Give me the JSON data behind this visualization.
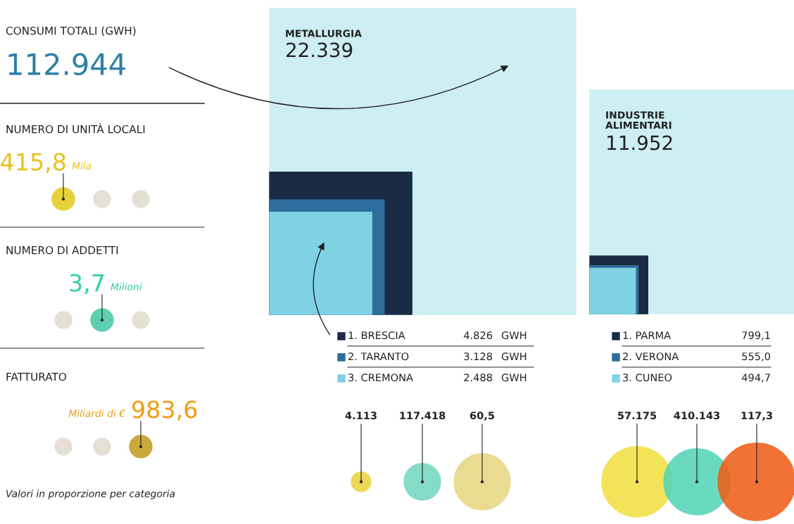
{
  "chart_data": [
    {
      "type": "other",
      "title": "CONSUMI TOTALI (GWH)",
      "subtitle": "112.944",
      "annotations": [
        "NUMERO DI UNITÀ LOCALI",
        "415,8",
        "Mila",
        "NUMERO DI ADDETTI",
        "3,7",
        "Milioni",
        "FATTURATO",
        "983,6",
        "Miliardi di €",
        "Valori in proporzione per categoria"
      ]
    },
    {
      "type": "other",
      "categories": [
        "METALLURGIA",
        "1. BRESCIA",
        "2. TARANTO",
        "3. CREMONA"
      ],
      "values": [
        22339,
        4826,
        3128,
        2488
      ],
      "value_labels": [
        "22.339",
        "4.826",
        "3.128",
        "2.488"
      ],
      "colors": [
        "#cdeef3",
        "#1c2b45",
        "#2f6d9c",
        "#7fd2e4"
      ],
      "annotations": [
        "GWH",
        "GWH",
        "GWH"
      ]
    },
    {
      "type": "other",
      "annotations": [
        "4.113",
        "117.418",
        "60,5"
      ]
    },
    {
      "type": "other",
      "categories": [
        "INDUSTRIE\nALIMENTARI",
        "1. PARMA",
        "2. VERONA",
        "3. CUNEO"
      ],
      "values": [
        11952,
        799.1,
        555.0,
        494.7
      ],
      "value_labels": [
        "11.952",
        "799,1",
        "555,0",
        "494,7"
      ],
      "colors": [
        "#cdeef3",
        "#1c2b45",
        "#2f6d9c",
        "#7fd2e4"
      ]
    },
    {
      "type": "other",
      "annotations": [
        "57.175",
        "410.143",
        "117,3"
      ]
    }
  ]
}
